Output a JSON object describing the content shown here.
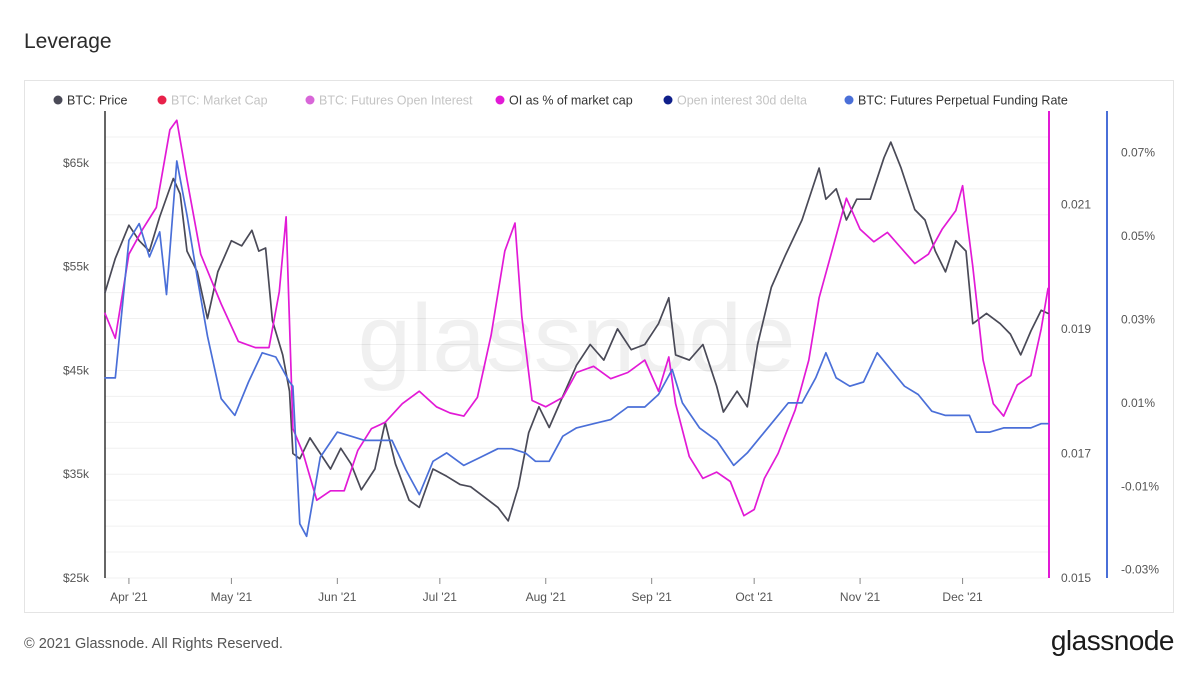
{
  "title": "Leverage",
  "footer": {
    "copyright": "© 2021 Glassnode. All Rights Reserved.",
    "logo": "glassnode"
  },
  "watermark": "glassnode",
  "colors": {
    "price": "#4a4a57",
    "market_cap": "#e8214a",
    "futures_oi": "#d866d8",
    "oi_pct": "#e21ad6",
    "oi_delta": "#0f1f8a",
    "funding": "#4a6fd8",
    "legend_disabled_text": "#c4c4c4",
    "legend_enabled_text": "#333333"
  },
  "chart_data": {
    "type": "line",
    "x_axis": {
      "type": "date",
      "start": "2021-03-25",
      "end": "2021-12-26",
      "tick_labels": [
        "Apr '21",
        "May '21",
        "Jun '21",
        "Jul '21",
        "Aug '21",
        "Sep '21",
        "Oct '21",
        "Nov '21",
        "Dec '21"
      ],
      "tick_dates": [
        "2021-04-01",
        "2021-05-01",
        "2021-06-01",
        "2021-07-01",
        "2021-08-01",
        "2021-09-01",
        "2021-10-01",
        "2021-11-01",
        "2021-12-01"
      ]
    },
    "y_axes": {
      "price": {
        "position": "left",
        "range": [
          25000,
          70000
        ],
        "ticks": [
          25000,
          35000,
          45000,
          55000,
          65000
        ],
        "tick_labels": [
          "$25k",
          "$35k",
          "$45k",
          "$55k",
          "$65k"
        ]
      },
      "oi_pct": {
        "position": "right-inner",
        "range": [
          0.015,
          0.0225
        ],
        "ticks": [
          0.015,
          0.017,
          0.019,
          0.021
        ],
        "tick_labels": [
          "0.015",
          "0.017",
          "0.019",
          "0.021"
        ]
      },
      "funding": {
        "position": "right-outer",
        "range": [
          -0.032,
          0.08
        ],
        "ticks": [
          -0.03,
          -0.01,
          0.01,
          0.03,
          0.05,
          0.07
        ],
        "tick_labels": [
          "-0.03%",
          "-0.01%",
          "0.01%",
          "0.03%",
          "0.05%",
          "0.07%"
        ]
      }
    },
    "grid": true,
    "legend_position": "top",
    "legend": [
      {
        "label": "BTC: Price",
        "color": "#4a4a57",
        "enabled": true
      },
      {
        "label": "BTC: Market Cap",
        "color": "#e8214a",
        "enabled": false
      },
      {
        "label": "BTC: Futures Open Interest",
        "color": "#d866d8",
        "enabled": false
      },
      {
        "label": "OI as % of market cap",
        "color": "#e21ad6",
        "enabled": true
      },
      {
        "label": "Open interest 30d delta",
        "color": "#0f1f8a",
        "enabled": false
      },
      {
        "label": "BTC: Futures Perpetual Funding Rate",
        "color": "#4a6fd8",
        "enabled": true
      }
    ],
    "series": [
      {
        "name": "BTC: Price",
        "axis": "price",
        "color": "#4a4a57",
        "points": [
          [
            "2021-03-25",
            52500
          ],
          [
            "2021-03-28",
            55800
          ],
          [
            "2021-04-01",
            59000
          ],
          [
            "2021-04-04",
            57500
          ],
          [
            "2021-04-07",
            56500
          ],
          [
            "2021-04-10",
            59800
          ],
          [
            "2021-04-14",
            63500
          ],
          [
            "2021-04-16",
            62000
          ],
          [
            "2021-04-18",
            56500
          ],
          [
            "2021-04-21",
            54500
          ],
          [
            "2021-04-24",
            50000
          ],
          [
            "2021-04-27",
            54500
          ],
          [
            "2021-05-01",
            57500
          ],
          [
            "2021-05-04",
            57000
          ],
          [
            "2021-05-07",
            58500
          ],
          [
            "2021-05-09",
            56500
          ],
          [
            "2021-05-11",
            56800
          ],
          [
            "2021-05-13",
            49800
          ],
          [
            "2021-05-16",
            46500
          ],
          [
            "2021-05-18",
            43000
          ],
          [
            "2021-05-19",
            37000
          ],
          [
            "2021-05-21",
            36500
          ],
          [
            "2021-05-24",
            38500
          ],
          [
            "2021-05-27",
            37000
          ],
          [
            "2021-05-30",
            35500
          ],
          [
            "2021-06-02",
            37500
          ],
          [
            "2021-06-05",
            36000
          ],
          [
            "2021-06-08",
            33500
          ],
          [
            "2021-06-12",
            35500
          ],
          [
            "2021-06-15",
            40000
          ],
          [
            "2021-06-18",
            36000
          ],
          [
            "2021-06-22",
            32500
          ],
          [
            "2021-06-25",
            31800
          ],
          [
            "2021-06-29",
            35500
          ],
          [
            "2021-07-03",
            34800
          ],
          [
            "2021-07-07",
            34000
          ],
          [
            "2021-07-10",
            33800
          ],
          [
            "2021-07-14",
            32800
          ],
          [
            "2021-07-18",
            31800
          ],
          [
            "2021-07-21",
            30500
          ],
          [
            "2021-07-24",
            33800
          ],
          [
            "2021-07-27",
            39000
          ],
          [
            "2021-07-30",
            41500
          ],
          [
            "2021-08-02",
            39500
          ],
          [
            "2021-08-06",
            42500
          ],
          [
            "2021-08-10",
            45500
          ],
          [
            "2021-08-14",
            47500
          ],
          [
            "2021-08-18",
            46000
          ],
          [
            "2021-08-22",
            49000
          ],
          [
            "2021-08-26",
            47000
          ],
          [
            "2021-08-30",
            47500
          ],
          [
            "2021-09-03",
            49500
          ],
          [
            "2021-09-06",
            52000
          ],
          [
            "2021-09-08",
            46500
          ],
          [
            "2021-09-12",
            46000
          ],
          [
            "2021-09-16",
            47500
          ],
          [
            "2021-09-20",
            43500
          ],
          [
            "2021-09-22",
            41000
          ],
          [
            "2021-09-26",
            43000
          ],
          [
            "2021-09-29",
            41500
          ],
          [
            "2021-10-02",
            47500
          ],
          [
            "2021-10-06",
            53000
          ],
          [
            "2021-10-10",
            56000
          ],
          [
            "2021-10-15",
            59500
          ],
          [
            "2021-10-20",
            64500
          ],
          [
            "2021-10-22",
            61500
          ],
          [
            "2021-10-25",
            62500
          ],
          [
            "2021-10-28",
            59500
          ],
          [
            "2021-10-31",
            61500
          ],
          [
            "2021-11-04",
            61500
          ],
          [
            "2021-11-08",
            65500
          ],
          [
            "2021-11-10",
            67000
          ],
          [
            "2021-11-13",
            64500
          ],
          [
            "2021-11-17",
            60500
          ],
          [
            "2021-11-20",
            59500
          ],
          [
            "2021-11-23",
            56500
          ],
          [
            "2021-11-26",
            54500
          ],
          [
            "2021-11-29",
            57500
          ],
          [
            "2021-12-02",
            56500
          ],
          [
            "2021-12-04",
            49500
          ],
          [
            "2021-12-08",
            50500
          ],
          [
            "2021-12-12",
            49500
          ],
          [
            "2021-12-15",
            48500
          ],
          [
            "2021-12-18",
            46500
          ],
          [
            "2021-12-21",
            48800
          ],
          [
            "2021-12-24",
            50800
          ],
          [
            "2021-12-26",
            50500
          ]
        ]
      },
      {
        "name": "OI as % of market cap",
        "axis": "oi_pct",
        "color": "#e21ad6",
        "points": [
          [
            "2021-03-25",
            0.01925
          ],
          [
            "2021-03-28",
            0.01885
          ],
          [
            "2021-04-01",
            0.0202
          ],
          [
            "2021-04-05",
            0.0206
          ],
          [
            "2021-04-09",
            0.02095
          ],
          [
            "2021-04-13",
            0.0222
          ],
          [
            "2021-04-15",
            0.02235
          ],
          [
            "2021-04-18",
            0.0214
          ],
          [
            "2021-04-22",
            0.0202
          ],
          [
            "2021-04-25",
            0.0198
          ],
          [
            "2021-04-28",
            0.0194
          ],
          [
            "2021-05-03",
            0.0188
          ],
          [
            "2021-05-08",
            0.0187
          ],
          [
            "2021-05-12",
            0.0187
          ],
          [
            "2021-05-15",
            0.0196
          ],
          [
            "2021-05-17",
            0.0208
          ],
          [
            "2021-05-19",
            0.0174
          ],
          [
            "2021-05-22",
            0.017
          ],
          [
            "2021-05-26",
            0.01625
          ],
          [
            "2021-05-30",
            0.0164
          ],
          [
            "2021-06-03",
            0.0164
          ],
          [
            "2021-06-07",
            0.01705
          ],
          [
            "2021-06-11",
            0.0174
          ],
          [
            "2021-06-15",
            0.0175
          ],
          [
            "2021-06-20",
            0.0178
          ],
          [
            "2021-06-25",
            0.018
          ],
          [
            "2021-06-30",
            0.01775
          ],
          [
            "2021-07-04",
            0.01765
          ],
          [
            "2021-07-08",
            0.0176
          ],
          [
            "2021-07-12",
            0.0179
          ],
          [
            "2021-07-16",
            0.0189
          ],
          [
            "2021-07-20",
            0.02025
          ],
          [
            "2021-07-23",
            0.0207
          ],
          [
            "2021-07-25",
            0.0192
          ],
          [
            "2021-07-28",
            0.01785
          ],
          [
            "2021-08-01",
            0.01775
          ],
          [
            "2021-08-06",
            0.0179
          ],
          [
            "2021-08-10",
            0.0183
          ],
          [
            "2021-08-15",
            0.0184
          ],
          [
            "2021-08-20",
            0.0182
          ],
          [
            "2021-08-25",
            0.0183
          ],
          [
            "2021-08-30",
            0.0185
          ],
          [
            "2021-09-03",
            0.018
          ],
          [
            "2021-09-06",
            0.01855
          ],
          [
            "2021-09-08",
            0.0178
          ],
          [
            "2021-09-12",
            0.01695
          ],
          [
            "2021-09-16",
            0.0166
          ],
          [
            "2021-09-20",
            0.0167
          ],
          [
            "2021-09-24",
            0.01655
          ],
          [
            "2021-09-28",
            0.016
          ],
          [
            "2021-10-01",
            0.0161
          ],
          [
            "2021-10-04",
            0.0166
          ],
          [
            "2021-10-08",
            0.017
          ],
          [
            "2021-10-13",
            0.0177
          ],
          [
            "2021-10-17",
            0.0185
          ],
          [
            "2021-10-20",
            0.0195
          ],
          [
            "2021-10-24",
            0.0203
          ],
          [
            "2021-10-28",
            0.0211
          ],
          [
            "2021-11-01",
            0.0206
          ],
          [
            "2021-11-05",
            0.0204
          ],
          [
            "2021-11-09",
            0.02055
          ],
          [
            "2021-11-13",
            0.0203
          ],
          [
            "2021-11-17",
            0.02005
          ],
          [
            "2021-11-21",
            0.0202
          ],
          [
            "2021-11-25",
            0.0206
          ],
          [
            "2021-11-29",
            0.0209
          ],
          [
            "2021-12-01",
            0.0213
          ],
          [
            "2021-12-04",
            0.02
          ],
          [
            "2021-12-07",
            0.0185
          ],
          [
            "2021-12-10",
            0.0178
          ],
          [
            "2021-12-13",
            0.0176
          ],
          [
            "2021-12-17",
            0.0181
          ],
          [
            "2021-12-21",
            0.01825
          ],
          [
            "2021-12-24",
            0.019
          ],
          [
            "2021-12-26",
            0.01965
          ]
        ]
      },
      {
        "name": "BTC: Futures Perpetual Funding Rate",
        "axis": "funding",
        "color": "#4a6fd8",
        "points": [
          [
            "2021-03-25",
            0.016
          ],
          [
            "2021-03-28",
            0.016
          ],
          [
            "2021-04-01",
            0.049
          ],
          [
            "2021-04-04",
            0.053
          ],
          [
            "2021-04-07",
            0.045
          ],
          [
            "2021-04-10",
            0.051
          ],
          [
            "2021-04-12",
            0.036
          ],
          [
            "2021-04-15",
            0.068
          ],
          [
            "2021-04-18",
            0.055
          ],
          [
            "2021-04-21",
            0.04
          ],
          [
            "2021-04-24",
            0.026
          ],
          [
            "2021-04-28",
            0.011
          ],
          [
            "2021-05-02",
            0.007
          ],
          [
            "2021-05-06",
            0.015
          ],
          [
            "2021-05-10",
            0.022
          ],
          [
            "2021-05-14",
            0.021
          ],
          [
            "2021-05-18",
            0.015
          ],
          [
            "2021-05-19",
            0.014
          ],
          [
            "2021-05-21",
            -0.019
          ],
          [
            "2021-05-23",
            -0.022
          ],
          [
            "2021-05-27",
            -0.003
          ],
          [
            "2021-06-01",
            0.003
          ],
          [
            "2021-06-05",
            0.002
          ],
          [
            "2021-06-09",
            0.001
          ],
          [
            "2021-06-13",
            0.001
          ],
          [
            "2021-06-17",
            0.001
          ],
          [
            "2021-06-21",
            -0.006
          ],
          [
            "2021-06-25",
            -0.012
          ],
          [
            "2021-06-29",
            -0.004
          ],
          [
            "2021-07-03",
            -0.002
          ],
          [
            "2021-07-08",
            -0.005
          ],
          [
            "2021-07-13",
            -0.003
          ],
          [
            "2021-07-18",
            -0.001
          ],
          [
            "2021-07-22",
            -0.001
          ],
          [
            "2021-07-26",
            -0.002
          ],
          [
            "2021-07-29",
            -0.004
          ],
          [
            "2021-08-02",
            -0.004
          ],
          [
            "2021-08-06",
            0.002
          ],
          [
            "2021-08-10",
            0.004
          ],
          [
            "2021-08-15",
            0.005
          ],
          [
            "2021-08-20",
            0.006
          ],
          [
            "2021-08-25",
            0.009
          ],
          [
            "2021-08-30",
            0.009
          ],
          [
            "2021-09-03",
            0.012
          ],
          [
            "2021-09-07",
            0.018
          ],
          [
            "2021-09-10",
            0.01
          ],
          [
            "2021-09-15",
            0.004
          ],
          [
            "2021-09-20",
            0.001
          ],
          [
            "2021-09-25",
            -0.005
          ],
          [
            "2021-09-29",
            -0.002
          ],
          [
            "2021-10-03",
            0.002
          ],
          [
            "2021-10-07",
            0.006
          ],
          [
            "2021-10-11",
            0.01
          ],
          [
            "2021-10-15",
            0.01
          ],
          [
            "2021-10-19",
            0.016
          ],
          [
            "2021-10-22",
            0.022
          ],
          [
            "2021-10-25",
            0.016
          ],
          [
            "2021-10-29",
            0.014
          ],
          [
            "2021-11-02",
            0.015
          ],
          [
            "2021-11-06",
            0.022
          ],
          [
            "2021-11-10",
            0.018
          ],
          [
            "2021-11-14",
            0.014
          ],
          [
            "2021-11-18",
            0.012
          ],
          [
            "2021-11-22",
            0.008
          ],
          [
            "2021-11-26",
            0.007
          ],
          [
            "2021-11-30",
            0.007
          ],
          [
            "2021-12-03",
            0.007
          ],
          [
            "2021-12-05",
            0.003
          ],
          [
            "2021-12-09",
            0.003
          ],
          [
            "2021-12-13",
            0.004
          ],
          [
            "2021-12-17",
            0.004
          ],
          [
            "2021-12-21",
            0.004
          ],
          [
            "2021-12-24",
            0.005
          ],
          [
            "2021-12-26",
            0.005
          ]
        ]
      }
    ]
  }
}
